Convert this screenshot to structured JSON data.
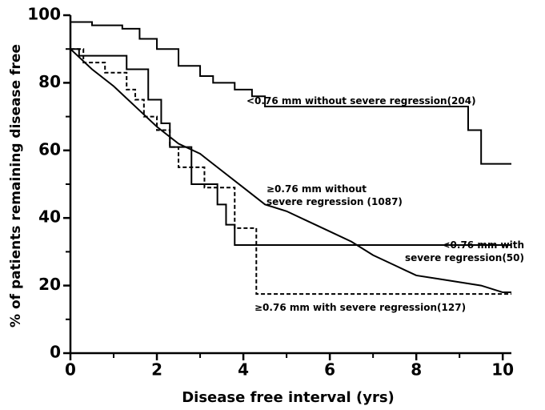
{
  "chart_data": {
    "type": "step-line",
    "xlabel": "Disease free interval (yrs)",
    "ylabel": "% of patients remaining disease free",
    "xlim": [
      0,
      10.2
    ],
    "ylim": [
      0,
      100
    ],
    "xticks": [
      0,
      2,
      4,
      6,
      8,
      10
    ],
    "yticks": [
      0,
      20,
      40,
      60,
      80,
      100
    ],
    "xminor": [
      1,
      3,
      5,
      7,
      9
    ],
    "yminor": [
      10,
      30,
      50,
      70,
      90
    ],
    "grid": false,
    "series": [
      {
        "name": "<0.76 mm without severe regression(204)",
        "color": "#000000",
        "dash": false,
        "interpolation": "step",
        "x": [
          0,
          0.5,
          1.2,
          1.6,
          2,
          2.5,
          3,
          3.3,
          3.8,
          4.2,
          4.5,
          9.2,
          9.5,
          10.2
        ],
        "values": [
          98,
          97,
          96,
          93,
          90,
          85,
          82,
          80,
          78,
          76,
          73,
          66,
          56,
          56
        ]
      },
      {
        "name": "≥0.76 mm without\nsevere regression (1087)",
        "color": "#000000",
        "dash": false,
        "interpolation": "linear",
        "x": [
          0,
          0.5,
          1,
          1.5,
          2,
          2.5,
          3,
          3.5,
          4,
          4.5,
          5,
          5.5,
          6,
          6.5,
          7,
          7.5,
          8,
          8.5,
          9,
          9.5,
          10,
          10.2
        ],
        "values": [
          90,
          84,
          79,
          73,
          67,
          62,
          59,
          54,
          49,
          44,
          42,
          39,
          36,
          33,
          29,
          26,
          23,
          22,
          21,
          20,
          18,
          18
        ]
      },
      {
        "name": "<0.76 mm with\nsevere regression(50)",
        "color": "#000000",
        "dash": false,
        "interpolation": "step",
        "x": [
          0,
          0.2,
          1.3,
          1.8,
          2.1,
          2.3,
          2.8,
          3.4,
          3.6,
          3.8,
          10.2
        ],
        "values": [
          90,
          88,
          84,
          75,
          68,
          61,
          50,
          44,
          38,
          32,
          32
        ]
      },
      {
        "name": "≥0.76 mm with severe regression(127)",
        "color": "#000000",
        "dash": true,
        "interpolation": "step",
        "x": [
          0,
          0.3,
          0.8,
          1.3,
          1.5,
          1.7,
          2,
          2.3,
          2.5,
          3.1,
          3.8,
          4.3,
          10.2
        ],
        "values": [
          90,
          86,
          83,
          78,
          75,
          70,
          66,
          61,
          55,
          49,
          37,
          17.5,
          17.5
        ]
      }
    ]
  }
}
